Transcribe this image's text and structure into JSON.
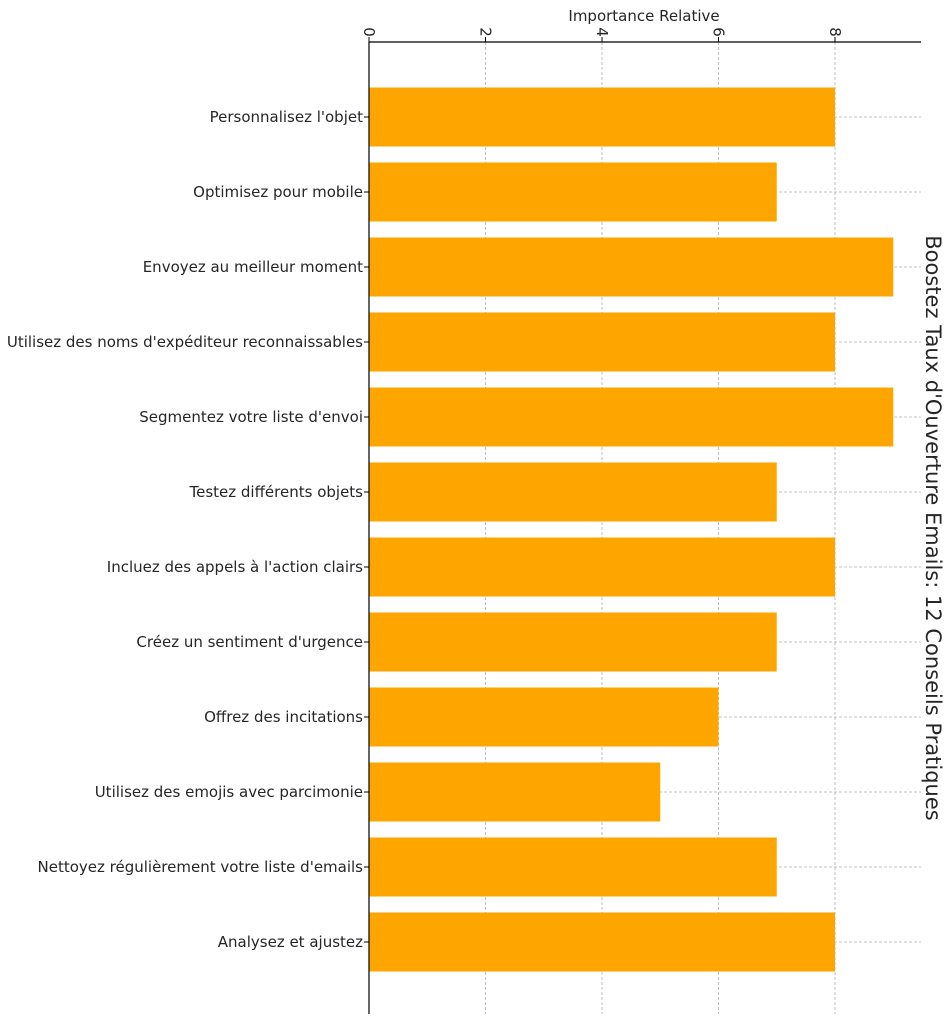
{
  "chart_data": {
    "type": "bar",
    "orientation": "horizontal",
    "title": "Boostez Taux d'Ouverture Emails: 12 Conseils Pratiques",
    "xlabel": "Importance Relative",
    "ylabel": "",
    "xlim": [
      0,
      9.5
    ],
    "xticks": [
      0,
      2,
      4,
      6,
      8
    ],
    "grid": true,
    "bar_color": "#FFA500",
    "categories": [
      "Personnalisez l'objet",
      "Optimisez pour mobile",
      "Envoyez au meilleur moment",
      "Utilisez des noms d'expéditeur reconnaissables",
      "Segmentez votre liste d'envoi",
      "Testez différents objets",
      "Incluez des appels à l'action clairs",
      "Créez un sentiment d'urgence",
      "Offrez des incitations",
      "Utilisez des emojis avec parcimonie",
      "Nettoyez régulièrement votre liste d'emails",
      "Analysez et ajustez"
    ],
    "values": [
      8,
      7,
      9,
      8,
      9,
      7,
      8,
      7,
      6,
      5,
      7,
      8
    ]
  }
}
